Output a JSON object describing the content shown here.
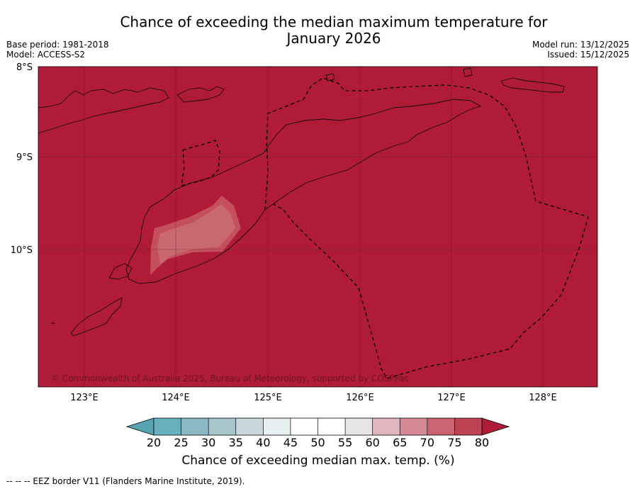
{
  "title_line1": "Chance of exceeding the median maximum temperature for",
  "title_line2": "January 2026",
  "base_period": "Base period: 1981-2018",
  "model": "Model: ACCESS-S2",
  "model_run": "Model run: 13/12/2025",
  "issued": "Issued: 15/12/2025",
  "lat_labels": [
    "8°S",
    "9°S",
    "10°S"
  ],
  "lon_labels": [
    "123°E",
    "124°E",
    "125°E",
    "126°E",
    "127°E",
    "128°E"
  ],
  "copyright": "© Commonwealth of Australia 2025, Bureau of Meteorology, supported by COSPPac",
  "colorbar": {
    "ticks": [
      "20",
      "25",
      "30",
      "35",
      "40",
      "45",
      "50",
      "55",
      "60",
      "65",
      "70",
      "75",
      "80"
    ],
    "colors": [
      "#67b0bd",
      "#8ab8c3",
      "#a6c6cb",
      "#c9d8dc",
      "#e9f0f1",
      "#ffffff",
      "#ffffff",
      "#e6e6e6",
      "#e0b7bf",
      "#d48b95",
      "#c96470",
      "#bd4253"
    ],
    "under_color": "#56a3b2",
    "over_color": "#b01c37",
    "label": "Chance of exceeding median max. temp. (%)"
  },
  "map_colors": {
    "background": "#b01c37",
    "patch_70_80": "#c4505d",
    "patch_60_70": "#cb6a73"
  },
  "footnote": "-- -- -- EEZ border V11 (Flanders Marine Institute, 2019)."
}
